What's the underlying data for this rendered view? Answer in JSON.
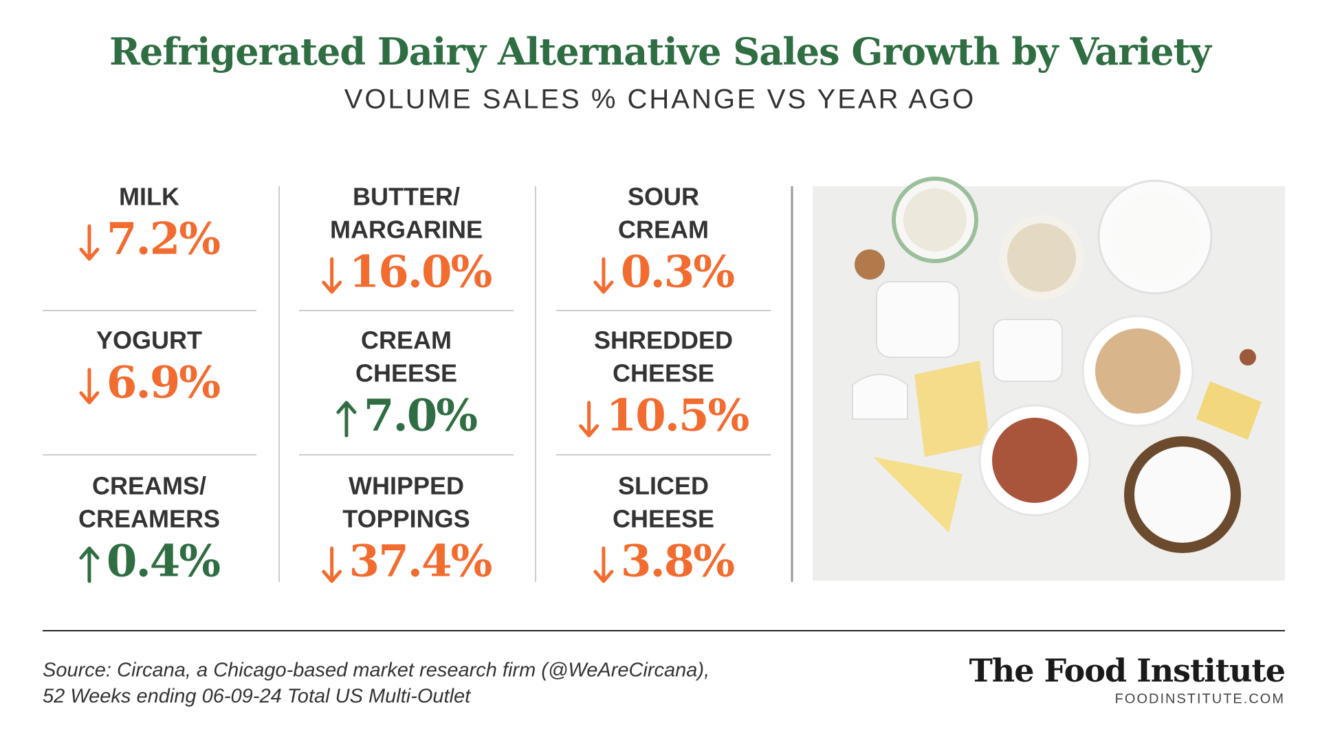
{
  "header": {
    "title": "Refrigerated Dairy Alternative Sales Growth by Variety",
    "subtitle": "VOLUME SALES % CHANGE VS YEAR AGO"
  },
  "colors": {
    "down": "#f26b2f",
    "up": "#2f6e42"
  },
  "columns": [
    [
      {
        "label": [
          "MILK"
        ],
        "direction": "down",
        "change": "7.2%"
      },
      {
        "label": [
          "YOGURT"
        ],
        "direction": "down",
        "change": "6.9%"
      },
      {
        "label": [
          "CREAMS/",
          "CREAMERS"
        ],
        "direction": "up",
        "change": "0.4%"
      }
    ],
    [
      {
        "label": [
          "BUTTER/",
          "MARGARINE"
        ],
        "direction": "down",
        "change": "16.0%"
      },
      {
        "label": [
          "CREAM",
          "CHEESE"
        ],
        "direction": "up",
        "change": "7.0%"
      },
      {
        "label": [
          "WHIPPED",
          "TOPPINGS"
        ],
        "direction": "down",
        "change": "37.4%"
      }
    ],
    [
      {
        "label": [
          "SOUR",
          "CREAM"
        ],
        "direction": "down",
        "change": "0.3%"
      },
      {
        "label": [
          "SHREDDED",
          "CHEESE"
        ],
        "direction": "down",
        "change": "10.5%"
      },
      {
        "label": [
          "SLICED",
          "CHEESE"
        ],
        "direction": "down",
        "change": "3.8%"
      }
    ]
  ],
  "footer": {
    "source": [
      "Source: Circana, a Chicago-based market research firm (@WeAreCircana),",
      "52 Weeks ending 06-09-24 Total US Multi-Outlet"
    ],
    "brand": "The Food Institute",
    "url": "FOODINSTITUTE.COM"
  }
}
